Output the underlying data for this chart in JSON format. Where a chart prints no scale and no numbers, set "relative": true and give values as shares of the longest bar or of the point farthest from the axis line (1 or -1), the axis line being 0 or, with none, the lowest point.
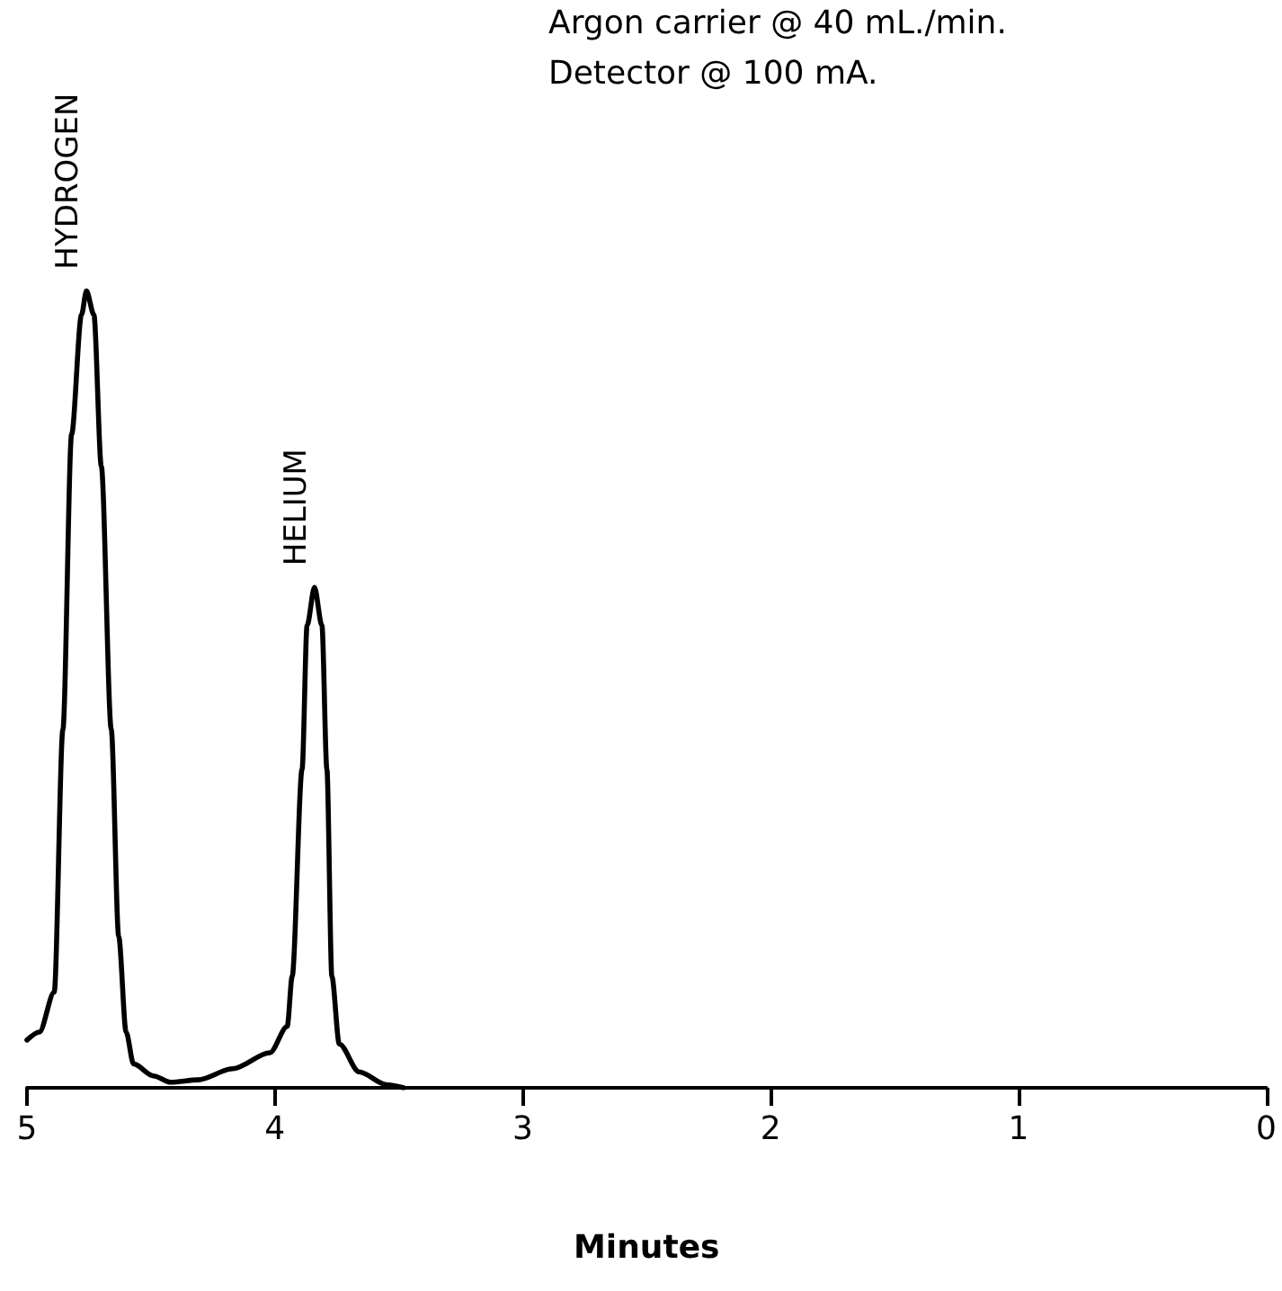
{
  "chart_data": {
    "type": "line",
    "relative": true,
    "xlabel": "Minutes",
    "color": "#000000",
    "marker": "none",
    "line_style": "solid",
    "annotations": [
      "Argon carrier @ 40 mL./min.",
      "Detector @ 100 mA.",
      {
        "text": "HYDROGEN",
        "x": 4.76,
        "y": 1
      },
      {
        "text": "HELIUM",
        "x": 3.84,
        "y": 0.628
      }
    ],
    "x": [
      5.0,
      4.95,
      4.89,
      4.855,
      4.82,
      4.78,
      4.76,
      4.73,
      4.7,
      4.66,
      4.63,
      4.6,
      4.57,
      4.49,
      4.42,
      4.31,
      4.17,
      4.02,
      3.95,
      3.93,
      3.89,
      3.87,
      3.84,
      3.81,
      3.79,
      3.77,
      3.74,
      3.66,
      3.55,
      3.48
    ],
    "values": [
      0.06,
      0.07,
      0.12,
      0.45,
      0.82,
      0.97,
      1,
      0.97,
      0.78,
      0.45,
      0.19,
      0.07,
      0.03,
      0.015,
      0.007,
      0.01,
      0.024,
      0.044,
      0.077,
      0.14,
      0.4,
      0.58,
      0.628,
      0.58,
      0.4,
      0.14,
      0.055,
      0.02,
      0.004,
      0
    ],
    "xlim": [
      5,
      0
    ],
    "xticks": [
      5,
      4,
      3,
      2,
      1,
      0
    ]
  }
}
